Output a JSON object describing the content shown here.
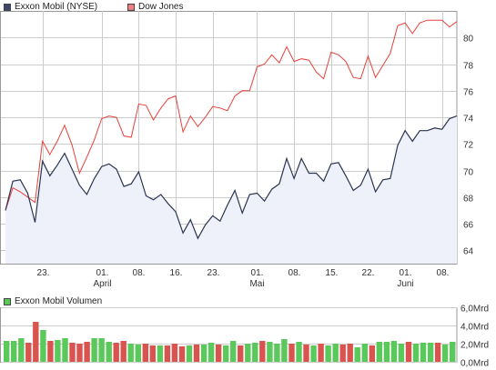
{
  "legend": {
    "xom": "Exxon Mobil (NYSE)",
    "dow": "Dow Jones",
    "volume": "Exxon Mobil Volumen"
  },
  "colors": {
    "xom_line": "#2b3550",
    "xom_fill": "#eef0fa",
    "dow_line": "#e8403a",
    "grid": "#cccccc",
    "axis_text": "#333333",
    "vol_green": "#5ac85a",
    "vol_red": "#d9534f",
    "xom_swatch": "#3b4a6b",
    "dow_swatch": "#f08080",
    "vol_swatch": "#5ac85a"
  },
  "chart_data": [
    {
      "type": "line",
      "title": "",
      "grid": true,
      "ylim": [
        63,
        82
      ],
      "y_ticks": [
        64,
        66,
        68,
        70,
        72,
        74,
        76,
        78,
        80
      ],
      "x_tick_labels": [
        {
          "i": 5,
          "label": "23.",
          "sub": ""
        },
        {
          "i": 13,
          "label": "01.",
          "sub": "April"
        },
        {
          "i": 18,
          "label": "08.",
          "sub": ""
        },
        {
          "i": 23,
          "label": "16.",
          "sub": ""
        },
        {
          "i": 28,
          "label": "23.",
          "sub": ""
        },
        {
          "i": 34,
          "label": "01.",
          "sub": "Mai"
        },
        {
          "i": 39,
          "label": "08.",
          "sub": ""
        },
        {
          "i": 44,
          "label": "15.",
          "sub": ""
        },
        {
          "i": 49,
          "label": "22.",
          "sub": ""
        },
        {
          "i": 54,
          "label": "01.",
          "sub": "Juni"
        },
        {
          "i": 59,
          "label": "08.",
          "sub": ""
        }
      ],
      "series": [
        {
          "name": "Exxon Mobil (NYSE)",
          "values": [
            67.0,
            69.2,
            69.3,
            68.3,
            66.1,
            70.7,
            69.6,
            70.4,
            71.3,
            70.1,
            68.9,
            68.2,
            69.4,
            70.3,
            70.5,
            70.1,
            68.8,
            69.0,
            69.9,
            68.1,
            67.8,
            68.2,
            67.5,
            66.9,
            65.3,
            66.3,
            64.9,
            65.9,
            66.6,
            66.2,
            67.4,
            68.5,
            66.8,
            68.2,
            68.3,
            67.7,
            68.6,
            69.0,
            70.9,
            69.4,
            70.9,
            69.8,
            69.8,
            69.2,
            70.5,
            70.6,
            69.6,
            68.5,
            68.9,
            70.1,
            68.4,
            69.3,
            69.4,
            71.9,
            73.0,
            72.2,
            73.0,
            73.0,
            73.2,
            73.1,
            73.9,
            74.1
          ]
        },
        {
          "name": "Dow Jones",
          "values": [
            67.0,
            68.7,
            68.4,
            68.0,
            67.6,
            72.2,
            71.2,
            72.2,
            73.4,
            71.9,
            69.8,
            71.0,
            72.3,
            73.9,
            74.1,
            74.0,
            72.6,
            72.5,
            75.0,
            74.9,
            73.8,
            74.7,
            75.4,
            75.6,
            72.9,
            74.1,
            73.3,
            74.0,
            74.8,
            74.7,
            74.5,
            75.6,
            76.0,
            76.0,
            77.8,
            78.0,
            78.7,
            78.1,
            79.3,
            78.2,
            78.4,
            78.3,
            77.4,
            76.9,
            78.9,
            78.7,
            78.2,
            77.0,
            76.9,
            78.6,
            77.0,
            77.9,
            78.8,
            80.9,
            81.1,
            80.3,
            81.1,
            81.3,
            81.3,
            81.3,
            80.8,
            81.2
          ]
        }
      ]
    },
    {
      "type": "bar",
      "title": "",
      "grid": true,
      "ylim": [
        0,
        6
      ],
      "y_tick_labels": [
        "0,0Mrd",
        "2,0Mrd",
        "4,0Mrd",
        "6,0Mrd"
      ],
      "y_ticks": [
        0,
        2,
        4,
        6
      ],
      "series": [
        {
          "name": "Exxon Mobil Volumen",
          "values": [
            2.3,
            2.3,
            2.6,
            2.1,
            4.4,
            3.5,
            2.3,
            2.4,
            2.6,
            2.1,
            2.0,
            2.2,
            2.6,
            2.6,
            2.2,
            2.1,
            2.3,
            2.0,
            1.9,
            2.0,
            1.8,
            1.8,
            1.8,
            2.0,
            1.7,
            1.8,
            1.9,
            1.9,
            2.1,
            1.9,
            1.8,
            2.3,
            1.8,
            2.0,
            2.1,
            2.3,
            2.2,
            2.0,
            2.5,
            2.0,
            2.2,
            1.9,
            1.8,
            2.0,
            1.8,
            2.0,
            1.9,
            2.0,
            1.6,
            2.0,
            1.8,
            2.2,
            2.2,
            2.3,
            2.0,
            2.2,
            2.0,
            2.1,
            2.1,
            2.1,
            1.9,
            2.2
          ]
        }
      ]
    }
  ]
}
